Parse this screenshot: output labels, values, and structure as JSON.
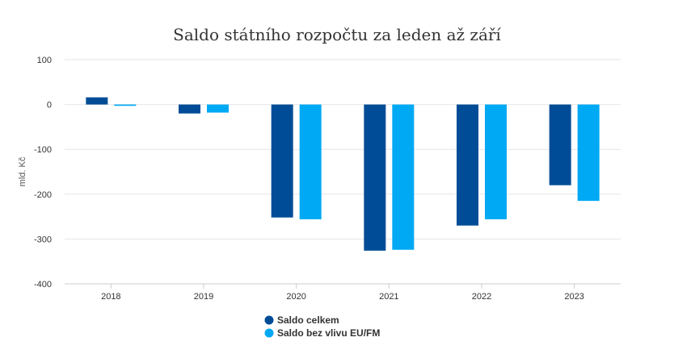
{
  "chart_data": {
    "type": "bar",
    "title": "Saldo státního rozpočtu za leden až září",
    "xlabel": "",
    "ylabel": "mld. Kč",
    "ylim": [
      -400,
      100
    ],
    "yticks": [
      100,
      0,
      -100,
      -200,
      -300,
      -400
    ],
    "ytick_labels": [
      "100",
      "0",
      "-100",
      "-200",
      "-300",
      "-400"
    ],
    "categories": [
      "2018",
      "2019",
      "2020",
      "2021",
      "2022",
      "2023"
    ],
    "series": [
      {
        "name": "Saldo celkem",
        "color": "#004c97",
        "values": [
          16,
          -20,
          -252,
          -326,
          -270,
          -180
        ]
      },
      {
        "name": "Saldo bez vlivu EU/FM",
        "color": "#00a9f4",
        "values": [
          -3,
          -18,
          -256,
          -324,
          -256,
          -215
        ]
      }
    ],
    "grid": true,
    "legend_position": "bottom-center"
  }
}
